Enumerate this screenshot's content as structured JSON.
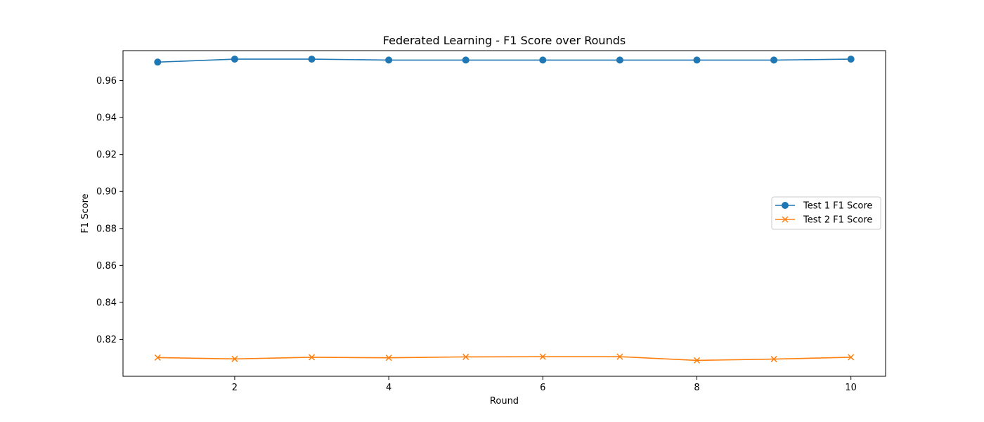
{
  "chart_data": {
    "type": "line",
    "title": "Federated Learning - F1 Score over Rounds",
    "xlabel": "Round",
    "ylabel": "F1 Score",
    "xlim": [
      0.55,
      10.45
    ],
    "ylim": [
      0.8,
      0.9762
    ],
    "x_ticks": [
      2,
      4,
      6,
      8,
      10
    ],
    "y_ticks": [
      0.82,
      0.84,
      0.86,
      0.88,
      0.9,
      0.92,
      0.94,
      0.96
    ],
    "x_tick_labels": [
      "2",
      "4",
      "6",
      "8",
      "10"
    ],
    "y_tick_labels": [
      "0.82",
      "0.84",
      "0.86",
      "0.88",
      "0.90",
      "0.92",
      "0.94",
      "0.96"
    ],
    "grid": false,
    "legend_position": "center-right",
    "x": [
      1,
      2,
      3,
      4,
      5,
      6,
      7,
      8,
      9,
      10
    ],
    "series": [
      {
        "name": "Test 1 F1 Score",
        "marker": "circle",
        "color": "#1f77b4",
        "values": [
          0.97,
          0.9716,
          0.9716,
          0.9711,
          0.9711,
          0.9711,
          0.9711,
          0.9711,
          0.9711,
          0.9716
        ]
      },
      {
        "name": "Test 2 F1 Score",
        "marker": "x",
        "color": "#ff7f0e",
        "values": [
          0.8101,
          0.8094,
          0.8103,
          0.81,
          0.8105,
          0.8106,
          0.8106,
          0.8086,
          0.8093,
          0.8103
        ]
      }
    ]
  }
}
